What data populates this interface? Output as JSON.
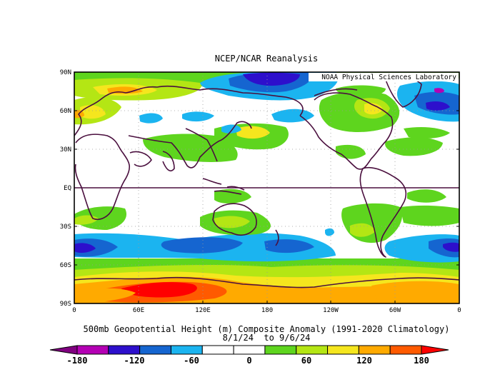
{
  "header": {
    "title": "NCEP/NCAR Reanalysis"
  },
  "credit": "NOAA Physical Sciences Laboratory",
  "caption": {
    "line1": "500mb Geopotential Height (m) Composite Anomaly (1991-2020 Climatology)",
    "line2": "8/1/24  to 9/6/24"
  },
  "map": {
    "lat_labels": [
      "90N",
      "60N",
      "30N",
      "EQ",
      "30S",
      "60S",
      "90S"
    ],
    "lon_labels": [
      "0",
      "60E",
      "120E",
      "180",
      "120W",
      "60W",
      "0"
    ],
    "coast_color": "#4a0f3e",
    "anomaly_regions": [
      {
        "lon": 40,
        "lat": 78,
        "value": 90,
        "note": "Scandinavia/Barents high"
      },
      {
        "lon": 28,
        "lat": 55,
        "value": 60,
        "note": "Europe high"
      },
      {
        "lon": 188,
        "lat": 82,
        "value": -120,
        "note": "Arctic low"
      },
      {
        "lon": 296,
        "lat": 62,
        "value": 75,
        "note": "Canada high"
      },
      {
        "lon": 345,
        "lat": 63,
        "value": -90,
        "note": "Greenland low"
      },
      {
        "lon": 150,
        "lat": 45,
        "value": 95,
        "note": "NW Pacific high"
      },
      {
        "lon": 330,
        "lat": -53,
        "value": -100,
        "note": "S Atlantic low"
      },
      {
        "lon": 90,
        "lat": -80,
        "value": 180,
        "note": "Antarctic high"
      }
    ]
  },
  "colorbar": {
    "labels": [
      "-180",
      "-120",
      "-60",
      "0",
      "60",
      "120",
      "180"
    ],
    "colors": [
      "#800080",
      "#b400b4",
      "#2d0fcc",
      "#1565d0",
      "#1bb4f0",
      "#ffffff",
      "#ffffff",
      "#5ed51e",
      "#b4e614",
      "#f5e61e",
      "#ffaa00",
      "#ff5a00",
      "#ff0000"
    ]
  }
}
